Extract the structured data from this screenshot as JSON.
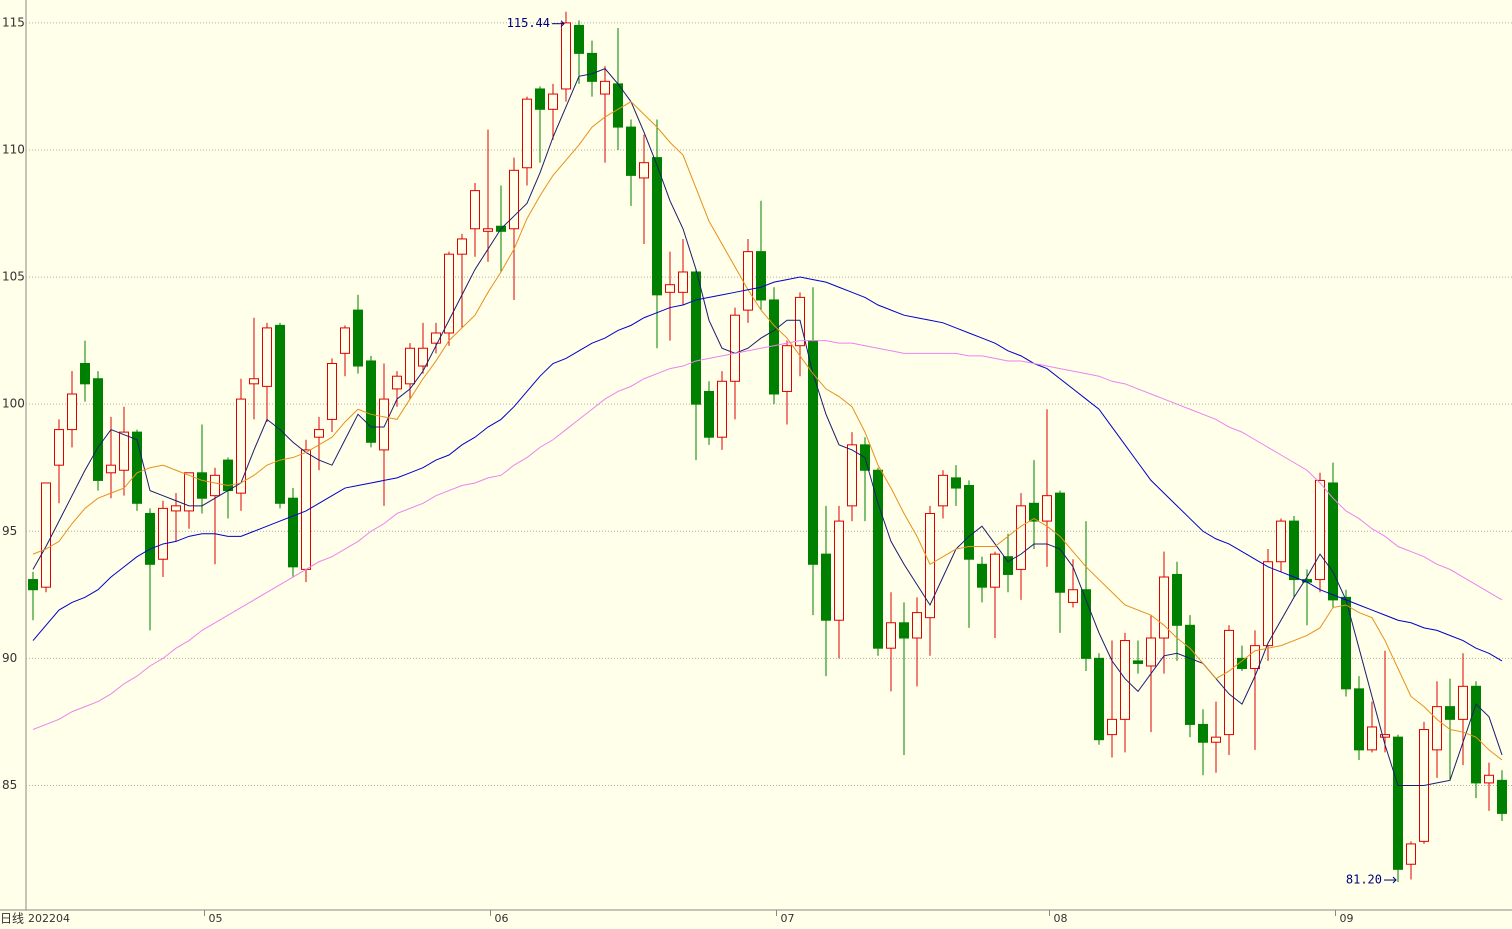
{
  "chart_data": {
    "type": "candlestick",
    "period": "日线",
    "categories": [
      "202204",
      null,
      null,
      null,
      null,
      null,
      null,
      null,
      null,
      null,
      null,
      null,
      null,
      null,
      "05",
      null,
      null,
      null,
      null,
      null,
      null,
      null,
      null,
      null,
      null,
      null,
      null,
      null,
      null,
      null,
      null,
      null,
      null,
      null,
      null,
      null,
      "06",
      null,
      null,
      null,
      null,
      null,
      null,
      null,
      null,
      null,
      null,
      null,
      null,
      null,
      null,
      null,
      null,
      null,
      null,
      null,
      null,
      null,
      "07",
      null,
      null,
      null,
      null,
      null,
      null,
      null,
      null,
      null,
      null,
      null,
      null,
      null,
      null,
      null,
      null,
      null,
      null,
      null,
      null,
      "08",
      null,
      null,
      null,
      null,
      null,
      null,
      null,
      null,
      null,
      null,
      null,
      null,
      null,
      null,
      null,
      null,
      null,
      null,
      null,
      null,
      null,
      "09",
      null,
      null,
      null,
      null,
      null,
      null,
      null,
      null,
      null,
      null,
      null,
      null
    ],
    "open": [
      93.1,
      92.8,
      97.6,
      99.0,
      101.6,
      101.0,
      97.3,
      97.4,
      98.9,
      95.7,
      93.9,
      95.8,
      95.8,
      97.3,
      96.4,
      97.8,
      96.5,
      100.8,
      100.7,
      103.1,
      96.3,
      93.5,
      98.7,
      99.4,
      102.0,
      103.7,
      101.7,
      98.2,
      100.6,
      100.8,
      101.5,
      102.4,
      102.8,
      105.9,
      106.9,
      106.8,
      107.0,
      106.9,
      109.3,
      112.4,
      111.6,
      112.4,
      114.9,
      113.8,
      112.2,
      112.6,
      110.9,
      108.9,
      109.7,
      104.4,
      104.4,
      105.2,
      100.5,
      98.7,
      100.9,
      103.7,
      106.0,
      104.1,
      100.5,
      102.3,
      102.5,
      94.1,
      91.5,
      96.0,
      98.4,
      97.4,
      90.4,
      91.4,
      90.8,
      91.6,
      96.0,
      97.1,
      96.8,
      93.7,
      92.8,
      94.0,
      93.5,
      96.1,
      95.4,
      96.5,
      92.2,
      92.7,
      90.0,
      87.0,
      87.6,
      89.9,
      89.7,
      90.8,
      93.3,
      91.3,
      87.4,
      86.7,
      87.0,
      90.0,
      89.6,
      90.5,
      93.8,
      95.4,
      93.1,
      93.1,
      96.9,
      92.4,
      88.8,
      86.4,
      86.9,
      86.9,
      81.9,
      82.8,
      86.4,
      88.1,
      87.6,
      88.9,
      85.1,
      85.2
    ],
    "high": [
      93.4,
      96.9,
      99.4,
      101.3,
      102.5,
      101.3,
      99.5,
      99.9,
      99.0,
      95.9,
      96.2,
      96.5,
      97.3,
      99.2,
      97.5,
      97.9,
      101.0,
      103.4,
      103.2,
      103.2,
      96.7,
      98.6,
      99.5,
      101.8,
      103.1,
      104.3,
      101.9,
      101.6,
      101.3,
      102.4,
      103.2,
      103.2,
      106.0,
      106.7,
      108.7,
      110.8,
      108.6,
      109.7,
      112.1,
      112.5,
      112.6,
      115.44,
      115.1,
      114.3,
      113.3,
      114.8,
      111.2,
      110.6,
      111.2,
      106.0,
      106.5,
      105.3,
      100.9,
      101.3,
      103.8,
      106.5,
      108.0,
      104.6,
      102.5,
      104.4,
      104.6,
      96.0,
      96.0,
      98.9,
      98.7,
      97.5,
      92.6,
      92.2,
      92.4,
      96.0,
      97.4,
      97.6,
      97.0,
      94.0,
      94.2,
      94.9,
      96.5,
      97.8,
      99.8,
      96.6,
      93.9,
      95.4,
      90.2,
      90.7,
      91.0,
      90.7,
      91.7,
      94.2,
      93.8,
      91.7,
      88.0,
      88.3,
      91.3,
      90.5,
      91.1,
      94.3,
      95.5,
      95.6,
      93.5,
      97.3,
      97.7,
      92.7,
      89.3,
      88.3,
      90.3,
      87.0,
      82.8,
      87.5,
      89.1,
      89.2,
      90.2,
      89.1,
      85.9,
      85.6
    ],
    "low": [
      91.5,
      92.6,
      96.1,
      98.3,
      100.1,
      96.6,
      96.3,
      96.4,
      95.8,
      91.1,
      93.2,
      94.6,
      95.1,
      95.7,
      93.7,
      95.5,
      95.8,
      99.4,
      99.3,
      95.9,
      93.2,
      93.0,
      97.4,
      98.9,
      101.1,
      101.2,
      98.3,
      96.0,
      99.9,
      100.2,
      101.2,
      102.0,
      102.3,
      103.0,
      105.8,
      105.6,
      105.2,
      104.1,
      108.6,
      109.5,
      110.4,
      111.9,
      112.6,
      112.1,
      109.5,
      110.0,
      107.8,
      106.3,
      102.2,
      102.5,
      103.9,
      97.8,
      98.4,
      98.2,
      99.4,
      103.2,
      103.7,
      100.0,
      99.2,
      101.1,
      91.7,
      89.3,
      90.0,
      95.4,
      95.4,
      90.1,
      88.7,
      86.2,
      88.9,
      90.1,
      95.5,
      96.0,
      91.2,
      92.2,
      90.8,
      92.6,
      92.3,
      94.3,
      93.6,
      91.0,
      92.0,
      89.5,
      86.6,
      86.1,
      86.3,
      89.4,
      87.1,
      89.4,
      89.9,
      86.9,
      85.4,
      85.5,
      86.2,
      89.5,
      86.4,
      89.9,
      93.4,
      92.4,
      91.3,
      92.6,
      92.0,
      88.5,
      86.0,
      86.3,
      86.3,
      81.2,
      81.3,
      82.7,
      85.3,
      85.2,
      85.8,
      84.5,
      84.0,
      83.6
    ],
    "close": [
      92.7,
      96.9,
      99.0,
      100.4,
      100.8,
      97.0,
      97.6,
      98.9,
      96.1,
      93.7,
      95.9,
      96.0,
      97.3,
      96.3,
      97.2,
      96.6,
      100.2,
      101.0,
      103.0,
      96.1,
      93.6,
      98.2,
      99.0,
      101.6,
      103.0,
      101.5,
      98.5,
      100.2,
      101.1,
      102.2,
      102.2,
      102.8,
      105.9,
      106.5,
      108.4,
      106.9,
      106.8,
      109.2,
      112.0,
      111.6,
      112.2,
      115.0,
      113.8,
      112.7,
      112.7,
      110.9,
      109.0,
      109.5,
      104.3,
      104.7,
      105.2,
      100.0,
      98.7,
      100.9,
      103.5,
      106.0,
      104.1,
      100.4,
      102.3,
      104.2,
      93.7,
      91.5,
      95.4,
      98.4,
      97.4,
      90.4,
      91.4,
      90.8,
      91.8,
      95.7,
      97.2,
      96.7,
      93.9,
      92.8,
      94.1,
      93.3,
      96.0,
      95.4,
      96.4,
      92.6,
      92.7,
      90.0,
      86.8,
      87.6,
      90.7,
      89.8,
      90.8,
      93.2,
      91.3,
      87.4,
      86.7,
      86.9,
      91.1,
      89.6,
      90.5,
      93.8,
      95.4,
      93.1,
      93.0,
      97.0,
      92.3,
      88.8,
      86.4,
      87.3,
      87.0,
      81.7,
      82.7,
      87.2,
      88.1,
      87.6,
      88.9,
      85.1,
      85.4,
      83.9
    ],
    "up_color": "#e00000",
    "down_color": "#008000",
    "lines": [
      {
        "color": "#1c1c70",
        "values": [
          93.5,
          94.4,
          95.4,
          96.4,
          97.4,
          98.3,
          99.0,
          98.8,
          98.6,
          96.6,
          96.4,
          96.2,
          96.0,
          96.0,
          96.3,
          96.6,
          96.9,
          98.2,
          99.4,
          99.0,
          98.5,
          98.1,
          97.8,
          97.6,
          98.6,
          99.6,
          99.1,
          99.1,
          100.2,
          100.6,
          101.3,
          102.3,
          103.3,
          104.3,
          105.3,
          106.1,
          106.9,
          107.4,
          107.9,
          109.1,
          110.5,
          111.7,
          112.9,
          113.0,
          113.2,
          112.6,
          111.9,
          110.7,
          109.4,
          108.0,
          106.9,
          105.3,
          103.3,
          102.2,
          102.0,
          102.2,
          102.6,
          102.9,
          103.3,
          103.3,
          101.2,
          99.6,
          98.4,
          98.2,
          97.9,
          96.1,
          94.6,
          93.7,
          92.9,
          92.1,
          93.2,
          94.3,
          94.8,
          95.2,
          94.5,
          93.8,
          94.1,
          94.5,
          94.5,
          94.3,
          93.6,
          92.3,
          91.0,
          89.9,
          89.2,
          88.7,
          89.4,
          90.1,
          90.2,
          90.0,
          89.8,
          89.2,
          88.6,
          88.2,
          89.3,
          90.6,
          91.5,
          92.4,
          93.2,
          94.1,
          93.4,
          92.3,
          90.4,
          88.5,
          86.6,
          85.0,
          85.0,
          85.0,
          85.1,
          85.2,
          86.7,
          88.2,
          87.7,
          86.2
        ]
      },
      {
        "color": "#e8901a",
        "values": [
          94.1,
          94.3,
          94.6,
          95.3,
          95.9,
          96.3,
          96.5,
          96.7,
          97.3,
          97.5,
          97.6,
          97.4,
          97.2,
          97.0,
          96.9,
          96.8,
          96.9,
          97.2,
          97.6,
          97.8,
          97.9,
          98.1,
          98.4,
          98.7,
          99.3,
          99.8,
          99.6,
          99.5,
          99.4,
          100.2,
          101.0,
          101.7,
          102.5,
          103.0,
          103.5,
          104.4,
          105.2,
          106.1,
          107.3,
          108.2,
          109.0,
          109.6,
          110.2,
          110.9,
          111.3,
          111.6,
          111.9,
          111.4,
          110.9,
          110.3,
          109.8,
          108.5,
          107.2,
          106.3,
          105.4,
          104.5,
          103.7,
          103.1,
          102.6,
          101.9,
          101.2,
          100.6,
          100.3,
          99.9,
          98.9,
          97.6,
          96.7,
          95.7,
          94.8,
          93.7,
          94.0,
          94.3,
          94.4,
          94.4,
          94.4,
          94.8,
          95.2,
          95.5,
          95.2,
          94.8,
          94.2,
          93.6,
          93.1,
          92.6,
          92.1,
          91.9,
          91.7,
          91.3,
          90.8,
          90.4,
          89.8,
          89.2,
          89.5,
          89.9,
          90.3,
          90.4,
          90.5,
          90.7,
          90.9,
          91.2,
          92.0,
          92.1,
          91.8,
          91.6,
          90.7,
          89.6,
          88.5,
          88.1,
          87.6,
          87.2,
          87.1,
          86.9,
          86.4,
          86.0
        ]
      },
      {
        "color": "#0000cc",
        "values": [
          90.7,
          91.3,
          91.9,
          92.2,
          92.4,
          92.7,
          93.2,
          93.6,
          94.0,
          94.3,
          94.5,
          94.6,
          94.8,
          94.9,
          94.9,
          94.8,
          94.8,
          95.0,
          95.2,
          95.4,
          95.6,
          95.8,
          96.1,
          96.4,
          96.7,
          96.8,
          96.9,
          97.0,
          97.1,
          97.3,
          97.5,
          97.8,
          98.0,
          98.4,
          98.7,
          99.1,
          99.4,
          99.9,
          100.5,
          101.1,
          101.6,
          101.8,
          102.1,
          102.4,
          102.6,
          102.9,
          103.1,
          103.4,
          103.6,
          103.8,
          103.9,
          104.1,
          104.2,
          104.3,
          104.4,
          104.5,
          104.6,
          104.8,
          104.9,
          105.0,
          104.9,
          104.8,
          104.6,
          104.4,
          104.2,
          103.9,
          103.7,
          103.5,
          103.4,
          103.3,
          103.2,
          103.0,
          102.8,
          102.6,
          102.4,
          102.1,
          101.9,
          101.6,
          101.4,
          101.0,
          100.6,
          100.2,
          99.8,
          99.1,
          98.4,
          97.7,
          97.0,
          96.5,
          96.0,
          95.5,
          95.0,
          94.7,
          94.5,
          94.2,
          93.9,
          93.6,
          93.4,
          93.2,
          93.0,
          92.7,
          92.5,
          92.3,
          92.1,
          91.9,
          91.7,
          91.5,
          91.4,
          91.2,
          91.1,
          90.9,
          90.7,
          90.4,
          90.2,
          89.9
        ]
      },
      {
        "color": "#ee82ee",
        "values": [
          87.2,
          87.4,
          87.6,
          87.9,
          88.1,
          88.3,
          88.6,
          89.0,
          89.3,
          89.7,
          90.0,
          90.4,
          90.7,
          91.1,
          91.4,
          91.7,
          92.0,
          92.3,
          92.6,
          92.9,
          93.2,
          93.5,
          93.8,
          94.0,
          94.3,
          94.6,
          95.0,
          95.3,
          95.7,
          95.9,
          96.1,
          96.4,
          96.6,
          96.8,
          96.9,
          97.1,
          97.2,
          97.6,
          97.9,
          98.3,
          98.6,
          99.0,
          99.4,
          99.8,
          100.2,
          100.5,
          100.7,
          101.0,
          101.2,
          101.4,
          101.5,
          101.7,
          101.8,
          101.9,
          102.0,
          102.1,
          102.2,
          102.3,
          102.4,
          102.5,
          102.5,
          102.5,
          102.4,
          102.4,
          102.3,
          102.2,
          102.1,
          102.0,
          102.0,
          102.0,
          102.0,
          102.0,
          101.9,
          101.9,
          101.8,
          101.7,
          101.7,
          101.6,
          101.5,
          101.4,
          101.3,
          101.2,
          101.1,
          100.9,
          100.8,
          100.6,
          100.4,
          100.2,
          100.0,
          99.8,
          99.6,
          99.4,
          99.1,
          98.9,
          98.6,
          98.3,
          98.0,
          97.7,
          97.4,
          96.9,
          96.3,
          95.8,
          95.5,
          95.1,
          94.8,
          94.4,
          94.2,
          94.0,
          93.7,
          93.5,
          93.2,
          92.9,
          92.6,
          92.3
        ]
      }
    ],
    "annotations": [
      {
        "value": 115.44,
        "label": "115.44"
      },
      {
        "value": 81.2,
        "label": "81.20"
      }
    ],
    "ylim": [
      80.1,
      115.9
    ],
    "yticks": [
      85,
      90,
      95,
      100,
      105,
      110,
      115
    ],
    "grid": true
  }
}
